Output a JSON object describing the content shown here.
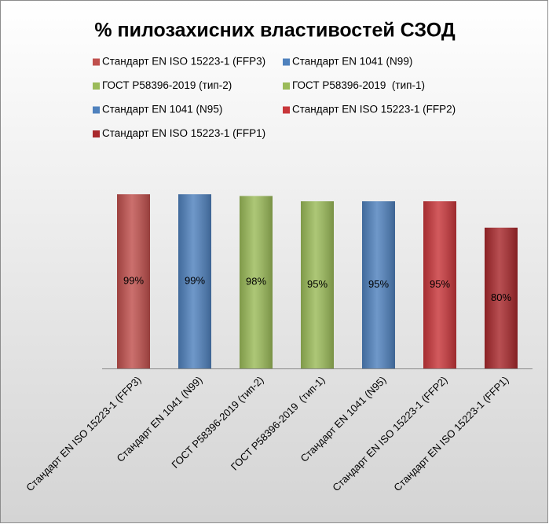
{
  "chart_data": {
    "type": "bar",
    "title": "% пилозахисних властивостей СЗОД",
    "categories": [
      "Стандарт EN ISO 15223-1 (FFP3)",
      "Стандарт EN 1041 (N99)",
      "ГОСТ Р58396-2019 (тип-2)",
      "ГОСТ Р58396-2019  (тип-1)",
      "Стандарт EN 1041 (N95)",
      "Стандарт EN ISO 15223-1 (FFP2)",
      "Стандарт EN ISO 15223-1 (FFP1)"
    ],
    "values": [
      99,
      99,
      98,
      95,
      95,
      95,
      80
    ],
    "value_labels": [
      "99%",
      "99%",
      "98%",
      "95%",
      "95%",
      "95%",
      "80%"
    ],
    "colors": [
      "#c0504d",
      "#4f81bd",
      "#9bbb59",
      "#9bbb59",
      "#4f81bd",
      "#c8363a",
      "#a8282c"
    ],
    "ylim": [
      0,
      100
    ]
  }
}
